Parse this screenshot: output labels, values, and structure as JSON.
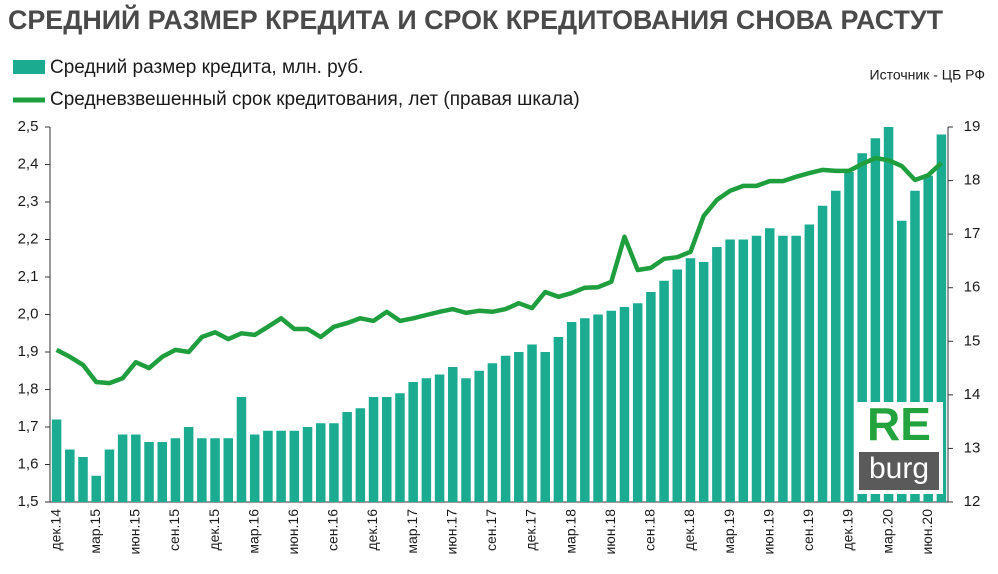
{
  "chart_data": {
    "type": "bar-line",
    "title": "СРЕДНИЙ РАЗМЕР КРЕДИТА И СРОК КРЕДИТОВАНИЯ СНОВА РАСТУТ",
    "source": "Источник  - ЦБ РФ",
    "logo": [
      "RE",
      "burg"
    ],
    "categories": [
      "дек.14",
      null,
      null,
      "мар.15",
      null,
      null,
      "июн.15",
      null,
      null,
      "сен.15",
      null,
      null,
      "дек.15",
      null,
      null,
      "мар.16",
      null,
      null,
      "июн.16",
      null,
      null,
      "сен.16",
      null,
      null,
      "дек.16",
      null,
      null,
      "мар.17",
      null,
      null,
      "июн.17",
      null,
      null,
      "сен.17",
      null,
      null,
      "дек.17",
      null,
      null,
      "мар.18",
      null,
      null,
      "июн.18",
      null,
      null,
      "сен.18",
      null,
      null,
      "дек.18",
      null,
      null,
      "мар.19",
      null,
      null,
      "июн.19",
      null,
      null,
      "сен.19",
      null,
      null,
      "дек.19",
      null,
      null,
      "мар.20",
      null,
      null,
      "июн.20",
      null
    ],
    "series": [
      {
        "name": "Средний размер кредита, млн. руб.",
        "type": "bar",
        "color": "#1aab91",
        "values": [
          1.72,
          1.64,
          1.62,
          1.57,
          1.64,
          1.68,
          1.68,
          1.66,
          1.66,
          1.67,
          1.7,
          1.67,
          1.67,
          1.67,
          1.78,
          1.68,
          1.69,
          1.69,
          1.69,
          1.7,
          1.71,
          1.71,
          1.74,
          1.75,
          1.78,
          1.78,
          1.79,
          1.82,
          1.83,
          1.84,
          1.86,
          1.83,
          1.85,
          1.87,
          1.89,
          1.9,
          1.92,
          1.9,
          1.94,
          1.98,
          1.99,
          2.0,
          2.01,
          2.02,
          2.03,
          2.06,
          2.09,
          2.12,
          2.15,
          2.14,
          2.18,
          2.2,
          2.2,
          2.21,
          2.23,
          2.21,
          2.21,
          2.24,
          2.29,
          2.33,
          2.38,
          2.43,
          2.47,
          2.5,
          2.25,
          2.33,
          2.37,
          2.48
        ]
      },
      {
        "name": "Средневзвешенный срок кредитования, лет (правая шкала)",
        "type": "line",
        "axis": "y2",
        "color": "#1f9e3e",
        "values": [
          14.84,
          14.71,
          14.56,
          14.24,
          14.22,
          14.31,
          14.61,
          14.5,
          14.71,
          14.84,
          14.8,
          15.08,
          15.17,
          15.04,
          15.15,
          15.12,
          15.27,
          15.43,
          15.23,
          15.23,
          15.08,
          15.27,
          15.34,
          15.43,
          15.38,
          15.55,
          15.38,
          15.43,
          15.49,
          15.55,
          15.6,
          15.53,
          15.57,
          15.55,
          15.6,
          15.71,
          15.62,
          15.92,
          15.83,
          15.9,
          16.0,
          16.01,
          16.11,
          16.95,
          16.33,
          16.37,
          16.54,
          16.57,
          16.67,
          17.34,
          17.64,
          17.81,
          17.9,
          17.9,
          17.99,
          17.99,
          18.07,
          18.14,
          18.2,
          18.18,
          18.18,
          18.31,
          18.42,
          18.38,
          18.27,
          18.01,
          18.1,
          18.33
        ]
      }
    ],
    "ylim": [
      1.5,
      2.5
    ],
    "yticks": [
      {
        "value": 1.5,
        "label": "1,5"
      },
      {
        "value": 1.6,
        "label": "1,6"
      },
      {
        "value": 1.7,
        "label": "1,7"
      },
      {
        "value": 1.8,
        "label": "1,8"
      },
      {
        "value": 1.9,
        "label": "1,9"
      },
      {
        "value": 2.0,
        "label": "2,0"
      },
      {
        "value": 2.1,
        "label": "2,1"
      },
      {
        "value": 2.2,
        "label": "2,2"
      },
      {
        "value": 2.3,
        "label": "2,3"
      },
      {
        "value": 2.4,
        "label": "2,4"
      },
      {
        "value": 2.5,
        "label": "2,5"
      }
    ],
    "y2lim": [
      12,
      19
    ],
    "y2ticks": [
      12,
      13,
      14,
      15,
      16,
      17,
      18,
      19
    ],
    "grid": false
  }
}
